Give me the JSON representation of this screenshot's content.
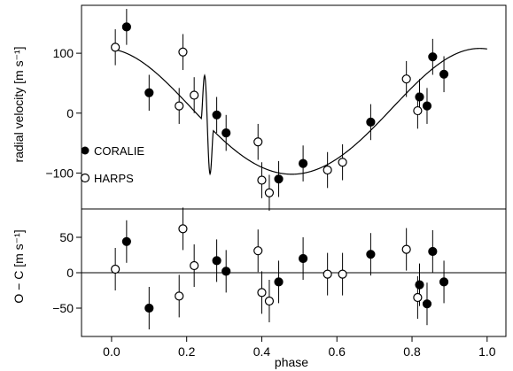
{
  "chart_data": [
    {
      "type": "scatter",
      "panel": "top",
      "xlabel": "",
      "ylabel": "radial velocity [m s⁻¹]",
      "xlim": [
        -0.08,
        1.05
      ],
      "ylim": [
        -160,
        180
      ],
      "yticks": [
        -100,
        0,
        100
      ],
      "ytick_labels": [
        "−100",
        "0",
        "100"
      ],
      "xticks": [
        0.0,
        0.2,
        0.4,
        0.6,
        0.8,
        1.0
      ],
      "grid": false,
      "legend_position": "bottom-left",
      "legend": [
        {
          "label": "CORALIE",
          "marker": "filled-circle"
        },
        {
          "label": "HARPS",
          "marker": "open-circle"
        }
      ],
      "series": [
        {
          "name": "CORALIE",
          "marker": "filled",
          "points": [
            {
              "x": 0.04,
              "y": 144,
              "err": 30
            },
            {
              "x": 0.1,
              "y": 34,
              "err": 30
            },
            {
              "x": 0.28,
              "y": -3,
              "err": 30
            },
            {
              "x": 0.305,
              "y": -33,
              "err": 30
            },
            {
              "x": 0.445,
              "y": -110,
              "err": 30
            },
            {
              "x": 0.51,
              "y": -84,
              "err": 30
            },
            {
              "x": 0.69,
              "y": -15,
              "err": 30
            },
            {
              "x": 0.82,
              "y": 27,
              "err": 30
            },
            {
              "x": 0.84,
              "y": 12,
              "err": 30
            },
            {
              "x": 0.855,
              "y": 94,
              "err": 30
            },
            {
              "x": 0.885,
              "y": 65,
              "err": 30
            }
          ]
        },
        {
          "name": "HARPS",
          "marker": "open",
          "points": [
            {
              "x": 0.01,
              "y": 110,
              "err": 30
            },
            {
              "x": 0.18,
              "y": 12,
              "err": 30
            },
            {
              "x": 0.19,
              "y": 102,
              "err": 30
            },
            {
              "x": 0.22,
              "y": 30,
              "err": 30
            },
            {
              "x": 0.39,
              "y": -48,
              "err": 30
            },
            {
              "x": 0.4,
              "y": -112,
              "err": 30
            },
            {
              "x": 0.42,
              "y": -133,
              "err": 30
            },
            {
              "x": 0.575,
              "y": -95,
              "err": 30
            },
            {
              "x": 0.615,
              "y": -82,
              "err": 30
            },
            {
              "x": 0.785,
              "y": 57,
              "err": 30
            },
            {
              "x": 0.815,
              "y": 4,
              "err": 30
            }
          ]
        }
      ],
      "model_curve": {
        "style": "line",
        "description_of_shape": "Keplerian orbit with Rossiter-McLaughlin anomaly near phase 0.25",
        "amplitude": 105,
        "rm_phase_center": 0.255,
        "rm_width": 0.032,
        "rm_amplitude": 55
      }
    },
    {
      "type": "scatter",
      "panel": "bottom",
      "xlabel": "phase",
      "ylabel": "O − C [m s⁻¹]",
      "xlim": [
        -0.08,
        1.05
      ],
      "ylim": [
        -90,
        90
      ],
      "yticks": [
        -50,
        0,
        50
      ],
      "ytick_labels": [
        "−50",
        "0",
        "50"
      ],
      "xticks": [
        0.0,
        0.2,
        0.4,
        0.6,
        0.8,
        1.0
      ],
      "xtick_labels": [
        "0.0",
        "0.2",
        "0.4",
        "0.6",
        "0.8",
        "1.0"
      ],
      "grid": false,
      "reference_line_y": 0,
      "series": [
        {
          "name": "CORALIE",
          "marker": "filled",
          "points": [
            {
              "x": 0.04,
              "y": 44,
              "err": 30
            },
            {
              "x": 0.1,
              "y": -50,
              "err": 30
            },
            {
              "x": 0.28,
              "y": 17,
              "err": 30
            },
            {
              "x": 0.305,
              "y": 2,
              "err": 30
            },
            {
              "x": 0.445,
              "y": -13,
              "err": 30
            },
            {
              "x": 0.51,
              "y": 20,
              "err": 30
            },
            {
              "x": 0.69,
              "y": 26,
              "err": 30
            },
            {
              "x": 0.82,
              "y": -17,
              "err": 30
            },
            {
              "x": 0.84,
              "y": -44,
              "err": 30
            },
            {
              "x": 0.855,
              "y": 30,
              "err": 30
            },
            {
              "x": 0.885,
              "y": -13,
              "err": 30
            }
          ]
        },
        {
          "name": "HARPS",
          "marker": "open",
          "points": [
            {
              "x": 0.01,
              "y": 5,
              "err": 30
            },
            {
              "x": 0.18,
              "y": -33,
              "err": 30
            },
            {
              "x": 0.19,
              "y": 62,
              "err": 30
            },
            {
              "x": 0.22,
              "y": 10,
              "err": 30
            },
            {
              "x": 0.39,
              "y": 31,
              "err": 30
            },
            {
              "x": 0.4,
              "y": -28,
              "err": 30
            },
            {
              "x": 0.42,
              "y": -40,
              "err": 30
            },
            {
              "x": 0.575,
              "y": -2,
              "err": 30
            },
            {
              "x": 0.615,
              "y": -2,
              "err": 30
            },
            {
              "x": 0.785,
              "y": 33,
              "err": 30
            },
            {
              "x": 0.815,
              "y": -35,
              "err": 30
            }
          ]
        }
      ]
    }
  ]
}
